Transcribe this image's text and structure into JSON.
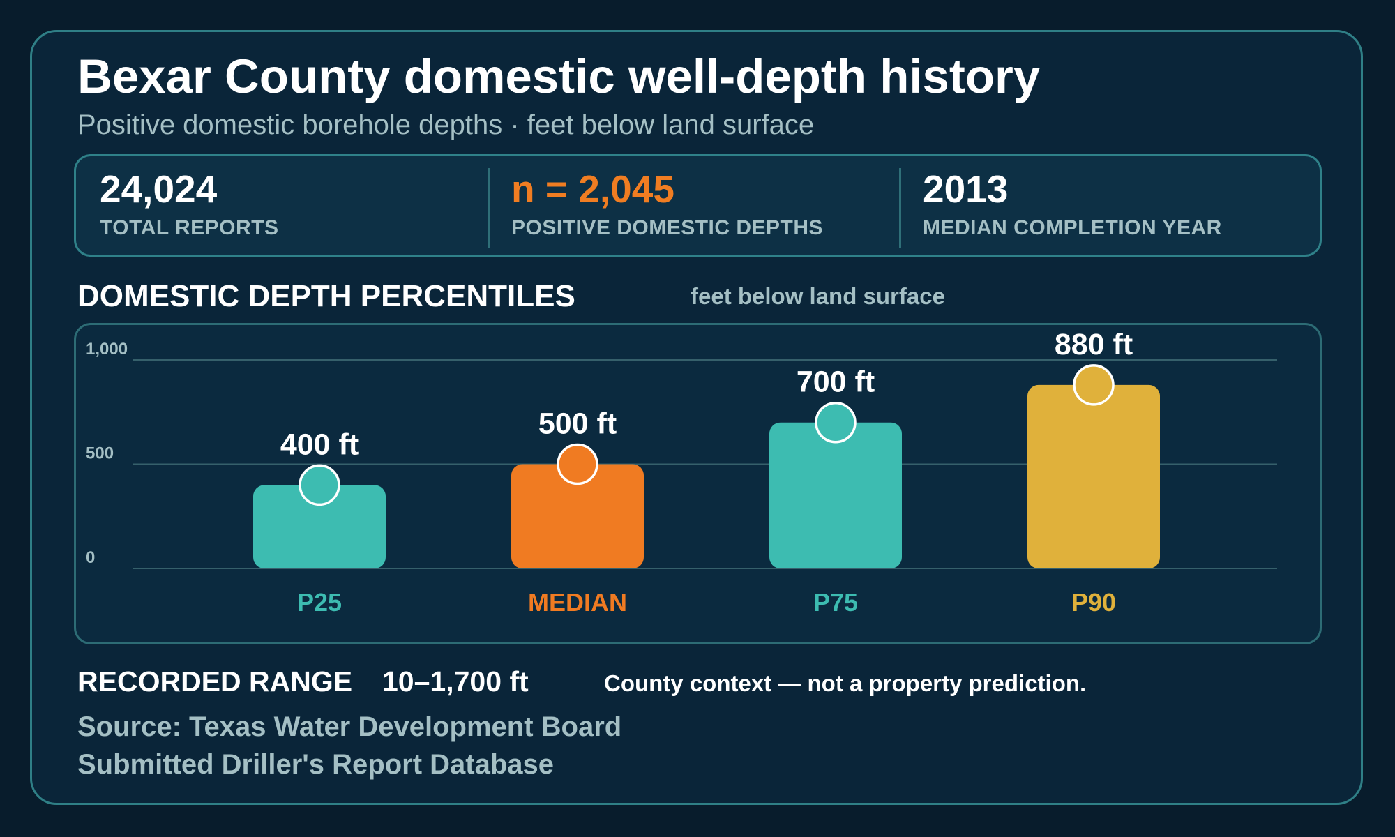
{
  "header": {
    "title": "Bexar County domestic well-depth history",
    "subtitle": "Positive domestic borehole depths · feet below land surface"
  },
  "stats": [
    {
      "value": "24,024",
      "label": "TOTAL REPORTS",
      "color": "#ffffff"
    },
    {
      "value": "n = 2,045",
      "label": "POSITIVE DOMESTIC DEPTHS",
      "color": "#f07d22"
    },
    {
      "value": "2013",
      "label": "MEDIAN COMPLETION YEAR",
      "color": "#ffffff"
    }
  ],
  "section": {
    "title": "DOMESTIC DEPTH PERCENTILES",
    "unit": "feet below land surface"
  },
  "chart_data": {
    "type": "bar",
    "categories": [
      "P25",
      "MEDIAN",
      "P75",
      "P90"
    ],
    "values": [
      400,
      500,
      700,
      880
    ],
    "value_labels": [
      "400 ft",
      "500 ft",
      "700 ft",
      "880 ft"
    ],
    "colors": [
      "#3dbcb1",
      "#f07b22",
      "#3dbcb1",
      "#e0b13b"
    ],
    "yticks": [
      0,
      500,
      1000
    ],
    "ytick_labels": [
      "0",
      "500",
      "1,000"
    ],
    "ylim": [
      0,
      1000
    ],
    "grid": true,
    "title": "",
    "xlabel": "",
    "ylabel": ""
  },
  "footer": {
    "range_label": "RECORDED RANGE",
    "range_value": "10–1,700 ft",
    "disclaimer": "County context — not a property prediction.",
    "source_line1": "Source: Texas Water Development Board",
    "source_line2": "Submitted Driller's Report Database"
  },
  "colors": {
    "background": "#081c2c",
    "card": "#0a2539",
    "border": "#2f7f86",
    "accent_teal": "#3dbcb1",
    "accent_orange": "#f07b22",
    "accent_gold": "#e0b13b",
    "muted_text": "#a4bfc4"
  }
}
